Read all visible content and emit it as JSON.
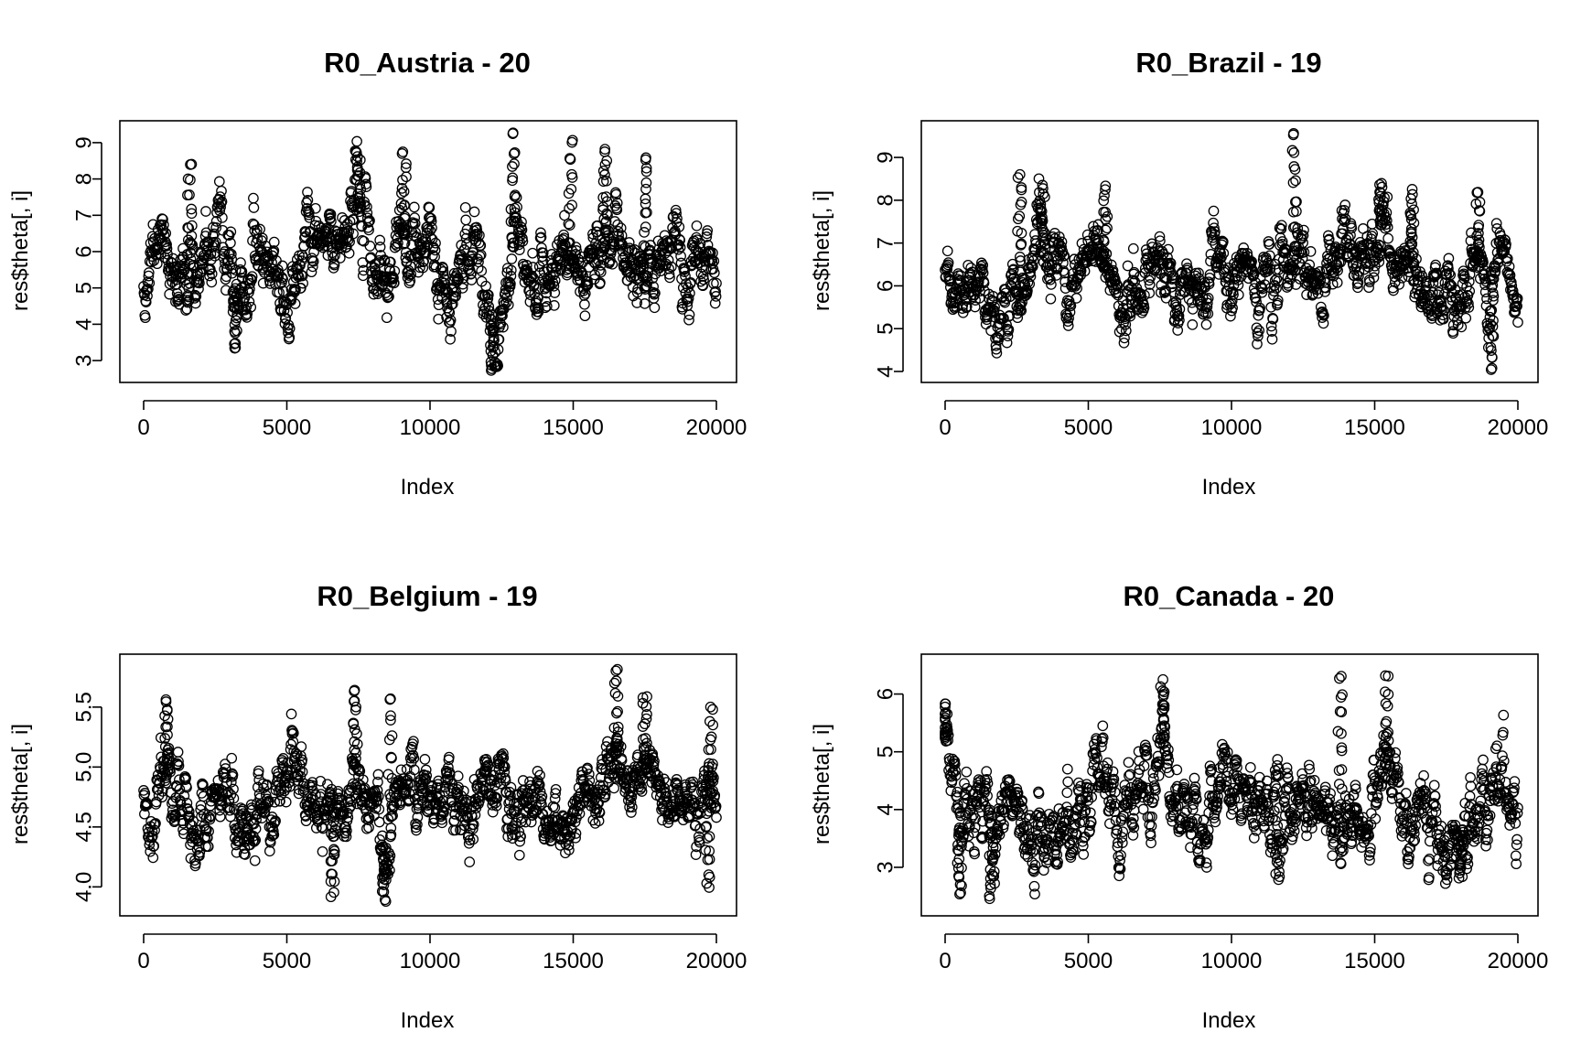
{
  "figure": {
    "background": "#ffffff",
    "point_color": "#000000",
    "point_shape": "open-circle"
  },
  "chart_data": [
    {
      "type": "scatter",
      "title": "R0_Austria - 20",
      "xlabel": "Index",
      "ylabel": "res$theta[, i]",
      "xlim": [
        0,
        20000
      ],
      "ylim": [
        2.7,
        9.3
      ],
      "xticks": [
        "0",
        "5000",
        "10000",
        "15000",
        "20000"
      ],
      "yticks": [
        "3",
        "4",
        "5",
        "6",
        "7",
        "8",
        "9"
      ],
      "xtick_values": [
        0,
        5000,
        10000,
        15000,
        20000
      ],
      "ytick_values": [
        3,
        4,
        5,
        6,
        7,
        8,
        9
      ],
      "n_points": 20000,
      "trace": {
        "x": [
          0,
          250,
          500,
          800,
          1100,
          1500,
          2000,
          2500,
          3000,
          3300,
          3600,
          4000,
          4500,
          5000,
          5500,
          6000,
          6500,
          7000,
          7500,
          8000,
          8500,
          9000,
          9500,
          10000,
          10500,
          11000,
          11500,
          12000,
          12300,
          12600,
          13000,
          13500,
          14000,
          14500,
          15000,
          15500,
          16000,
          16500,
          17000,
          17500,
          18000,
          18500,
          19000,
          19500,
          20000
        ],
        "y": [
          5.4,
          5.7,
          6.4,
          6.6,
          4.6,
          5.5,
          5.3,
          5.8,
          6.0,
          4.1,
          5.0,
          6.1,
          5.8,
          4.4,
          5.6,
          6.3,
          5.9,
          7.0,
          7.2,
          5.5,
          5.1,
          6.4,
          5.6,
          5.9,
          5.0,
          5.8,
          6.3,
          4.9,
          3.4,
          5.2,
          6.7,
          5.7,
          5.2,
          5.9,
          5.8,
          5.3,
          6.6,
          6.5,
          5.5,
          5.8,
          5.5,
          6.0,
          5.2,
          5.8,
          5.6
        ]
      },
      "spikes": [
        {
          "x": 1600,
          "y": 8.4
        },
        {
          "x": 3200,
          "y": 3.3
        },
        {
          "x": 7500,
          "y": 8.6
        },
        {
          "x": 9100,
          "y": 8.7
        },
        {
          "x": 12200,
          "y": 2.8
        },
        {
          "x": 12900,
          "y": 9.2
        },
        {
          "x": 14900,
          "y": 9.0
        },
        {
          "x": 16100,
          "y": 8.8
        },
        {
          "x": 17500,
          "y": 8.6
        }
      ],
      "noise_sd": 0.55,
      "seed": 11
    },
    {
      "type": "scatter",
      "title": "R0_Brazil - 19",
      "xlabel": "Index",
      "ylabel": "res$theta[, i]",
      "xlim": [
        0,
        20000
      ],
      "ylim": [
        4.0,
        9.6
      ],
      "xticks": [
        "0",
        "5000",
        "10000",
        "15000",
        "20000"
      ],
      "yticks": [
        "4",
        "5",
        "6",
        "7",
        "8",
        "9"
      ],
      "xtick_values": [
        0,
        5000,
        10000,
        15000,
        20000
      ],
      "ytick_values": [
        4,
        5,
        6,
        7,
        8,
        9
      ],
      "n_points": 20000,
      "trace": {
        "x": [
          0,
          500,
          1000,
          1500,
          2000,
          2500,
          3000,
          3500,
          4000,
          4500,
          5000,
          5500,
          6000,
          6500,
          7000,
          7500,
          8000,
          8500,
          9000,
          9500,
          10000,
          10500,
          11000,
          11500,
          12000,
          12300,
          12600,
          13000,
          13500,
          14000,
          14500,
          15000,
          15300,
          15600,
          16000,
          16500,
          17000,
          17500,
          18000,
          18500,
          19000,
          19300,
          19600,
          20000
        ],
        "y": [
          5.9,
          5.6,
          5.9,
          5.5,
          5.3,
          6.3,
          6.5,
          6.9,
          6.1,
          5.9,
          6.2,
          6.7,
          5.8,
          5.6,
          6.0,
          6.5,
          6.0,
          5.5,
          5.9,
          6.3,
          6.1,
          6.2,
          5.9,
          6.1,
          6.4,
          7.2,
          5.9,
          6.0,
          6.5,
          6.6,
          6.9,
          7.0,
          7.6,
          6.4,
          6.6,
          6.5,
          5.4,
          5.8,
          5.6,
          6.7,
          5.2,
          6.8,
          6.1,
          5.6
        ]
      },
      "spikes": [
        {
          "x": 2600,
          "y": 8.6
        },
        {
          "x": 3400,
          "y": 8.3
        },
        {
          "x": 5600,
          "y": 8.3
        },
        {
          "x": 12200,
          "y": 9.5
        },
        {
          "x": 15200,
          "y": 8.4
        },
        {
          "x": 16300,
          "y": 8.2
        },
        {
          "x": 18600,
          "y": 8.2
        },
        {
          "x": 19100,
          "y": 4.1
        }
      ],
      "noise_sd": 0.42,
      "seed": 23
    },
    {
      "type": "scatter",
      "title": "R0_Belgium - 19",
      "xlabel": "Index",
      "ylabel": "res$theta[, i]",
      "xlim": [
        0,
        20000
      ],
      "ylim": [
        3.85,
        5.85
      ],
      "xticks": [
        "0",
        "5000",
        "10000",
        "15000",
        "20000"
      ],
      "yticks": [
        "4.0",
        "4.5",
        "5.0",
        "5.5"
      ],
      "xtick_values": [
        0,
        5000,
        10000,
        15000,
        20000
      ],
      "ytick_values": [
        4.0,
        4.5,
        5.0,
        5.5
      ],
      "n_points": 20000,
      "trace": {
        "x": [
          0,
          300,
          600,
          900,
          1300,
          1800,
          2300,
          2800,
          3300,
          3800,
          4300,
          4800,
          5200,
          5600,
          6000,
          6500,
          7000,
          7400,
          7800,
          8200,
          8500,
          8800,
          9200,
          9700,
          10200,
          10700,
          11200,
          11700,
          12100,
          12500,
          13000,
          13500,
          14000,
          14500,
          15000,
          15500,
          16000,
          16500,
          17000,
          17500,
          18000,
          18500,
          19000,
          19500,
          20000
        ],
        "y": [
          4.7,
          4.6,
          4.9,
          5.1,
          4.7,
          4.5,
          4.7,
          4.9,
          4.4,
          4.6,
          4.7,
          4.8,
          5.1,
          4.8,
          4.6,
          4.6,
          4.7,
          5.0,
          4.7,
          4.5,
          4.2,
          4.9,
          4.9,
          4.7,
          4.8,
          4.8,
          4.6,
          4.8,
          4.9,
          4.8,
          4.4,
          4.8,
          4.6,
          4.6,
          4.6,
          4.8,
          4.8,
          5.0,
          4.8,
          5.0,
          4.8,
          4.8,
          4.7,
          4.8,
          4.6
        ]
      },
      "spikes": [
        {
          "x": 800,
          "y": 5.55
        },
        {
          "x": 6600,
          "y": 3.94
        },
        {
          "x": 7400,
          "y": 5.66
        },
        {
          "x": 8400,
          "y": 3.88
        },
        {
          "x": 8600,
          "y": 5.56
        },
        {
          "x": 16500,
          "y": 5.82
        },
        {
          "x": 17500,
          "y": 5.6
        },
        {
          "x": 19700,
          "y": 4.0
        },
        {
          "x": 19800,
          "y": 5.48
        }
      ],
      "noise_sd": 0.16,
      "seed": 37
    },
    {
      "type": "scatter",
      "title": "R0_Canada - 20",
      "xlabel": "Index",
      "ylabel": "res$theta[, i]",
      "xlim": [
        0,
        20000
      ],
      "ylim": [
        2.35,
        6.5
      ],
      "xticks": [
        "0",
        "5000",
        "10000",
        "15000",
        "20000"
      ],
      "yticks": [
        "3",
        "4",
        "5",
        "6"
      ],
      "xtick_values": [
        0,
        5000,
        10000,
        15000,
        20000
      ],
      "ytick_values": [
        3,
        4,
        5,
        6
      ],
      "n_points": 20000,
      "trace": {
        "x": [
          0,
          200,
          500,
          900,
          1300,
          1700,
          2200,
          2700,
          3200,
          3700,
          4200,
          4700,
          5200,
          5700,
          6200,
          6700,
          7200,
          7600,
          8000,
          8500,
          9000,
          9500,
          10000,
          10500,
          11000,
          11500,
          12000,
          12500,
          13000,
          13500,
          14000,
          14500,
          15000,
          15500,
          16000,
          16500,
          17000,
          17500,
          18000,
          18500,
          19000,
          19500,
          20000
        ],
        "y": [
          5.2,
          4.5,
          3.6,
          4.1,
          3.9,
          3.4,
          4.1,
          4.0,
          3.7,
          3.8,
          3.5,
          4.0,
          4.3,
          4.1,
          3.8,
          4.1,
          4.2,
          5.2,
          4.2,
          4.0,
          3.9,
          4.3,
          4.1,
          4.1,
          4.0,
          3.6,
          4.4,
          4.0,
          4.1,
          4.3,
          3.9,
          4.0,
          4.3,
          4.6,
          4.0,
          4.3,
          3.9,
          3.8,
          3.6,
          3.9,
          4.3,
          4.5,
          3.8
        ]
      },
      "spikes": [
        {
          "x": 0,
          "y": 5.8
        },
        {
          "x": 500,
          "y": 2.5
        },
        {
          "x": 1600,
          "y": 2.5
        },
        {
          "x": 7600,
          "y": 6.1
        },
        {
          "x": 11600,
          "y": 2.8
        },
        {
          "x": 13800,
          "y": 6.3
        },
        {
          "x": 15400,
          "y": 6.3
        },
        {
          "x": 18000,
          "y": 2.8
        }
      ],
      "noise_sd": 0.38,
      "seed": 53
    }
  ]
}
